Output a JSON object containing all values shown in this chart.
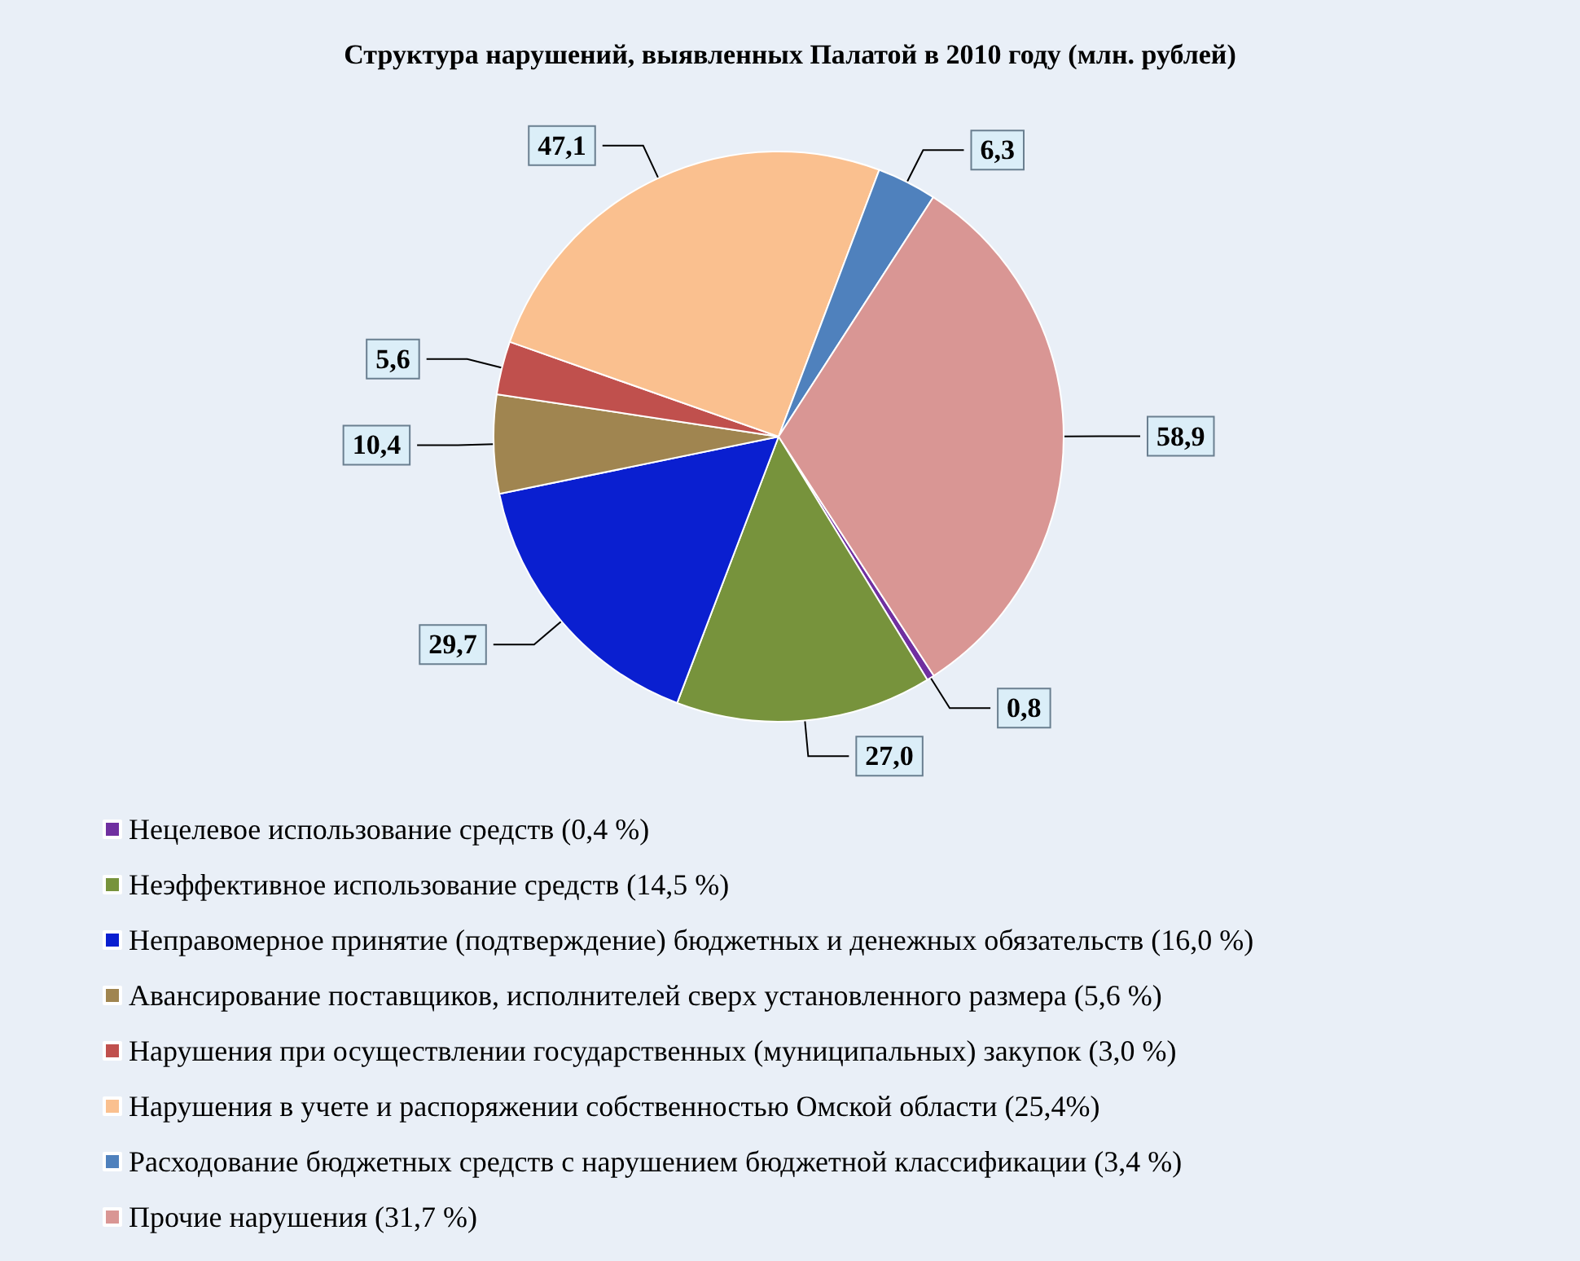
{
  "chart_data": {
    "type": "pie",
    "title": "Структура нарушений, выявленных Палатой в 2010 году (млн. рублей)",
    "categories": [
      "Нецелевое использование средств (0,4 %)",
      "Неэффективное использование средств (14,5 %)",
      "Неправомерное принятие (подтверждение) бюджетных и денежных обязательств (16,0 %)",
      "Авансирование поставщиков, исполнителей сверх установленного размера (5,6 %)",
      "Нарушения при осуществлении государственных (муниципальных) закупок (3,0 %)",
      "Нарушения в учете и распоряжении собственностью Омской области (25,4%)",
      "Расходование бюджетных средств с нарушением бюджетной классификации (3,4 %)",
      "Прочие нарушения (31,7 %)"
    ],
    "values": [
      0.8,
      27.0,
      29.7,
      10.4,
      5.6,
      47.1,
      6.3,
      58.9
    ],
    "value_labels": [
      "0,8",
      "27,0",
      "29,7",
      "10,4",
      "5,6",
      "47,1",
      "6,3",
      "58,9"
    ],
    "colors": [
      "#7030a0",
      "#77933c",
      "#0a1fd0",
      "#a08550",
      "#c0504d",
      "#fac08f",
      "#4f81bd",
      "#d99694"
    ],
    "legend": "bottom"
  }
}
